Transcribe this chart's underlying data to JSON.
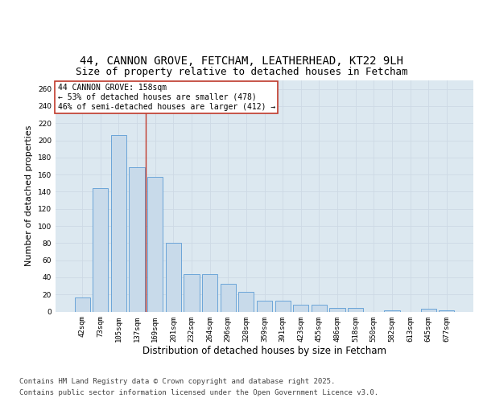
{
  "title_line1": "44, CANNON GROVE, FETCHAM, LEATHERHEAD, KT22 9LH",
  "title_line2": "Size of property relative to detached houses in Fetcham",
  "xlabel": "Distribution of detached houses by size in Fetcham",
  "ylabel": "Number of detached properties",
  "categories": [
    "42sqm",
    "73sqm",
    "105sqm",
    "137sqm",
    "169sqm",
    "201sqm",
    "232sqm",
    "264sqm",
    "296sqm",
    "328sqm",
    "359sqm",
    "391sqm",
    "423sqm",
    "455sqm",
    "486sqm",
    "518sqm",
    "550sqm",
    "582sqm",
    "613sqm",
    "645sqm",
    "677sqm"
  ],
  "values": [
    16,
    144,
    206,
    169,
    157,
    80,
    44,
    44,
    32,
    23,
    13,
    13,
    8,
    8,
    4,
    4,
    0,
    1,
    0,
    3,
    1
  ],
  "bar_color": "#c8daea",
  "bar_edge_color": "#5b9bd5",
  "vline_color": "#c0392b",
  "annotation_text": "44 CANNON GROVE: 158sqm\n← 53% of detached houses are smaller (478)\n46% of semi-detached houses are larger (412) →",
  "annotation_box_color": "#ffffff",
  "annotation_box_edge": "#c0392b",
  "ylim": [
    0,
    270
  ],
  "yticks": [
    0,
    20,
    40,
    60,
    80,
    100,
    120,
    140,
    160,
    180,
    200,
    220,
    240,
    260
  ],
  "grid_color": "#cdd9e5",
  "background_color": "#dce8f0",
  "footer_line1": "Contains HM Land Registry data © Crown copyright and database right 2025.",
  "footer_line2": "Contains public sector information licensed under the Open Government Licence v3.0.",
  "title_fontsize": 10,
  "subtitle_fontsize": 9,
  "tick_fontsize": 6.5,
  "xlabel_fontsize": 8.5,
  "ylabel_fontsize": 8,
  "footer_fontsize": 6.5,
  "annotation_fontsize": 7,
  "vline_x": 3.5
}
